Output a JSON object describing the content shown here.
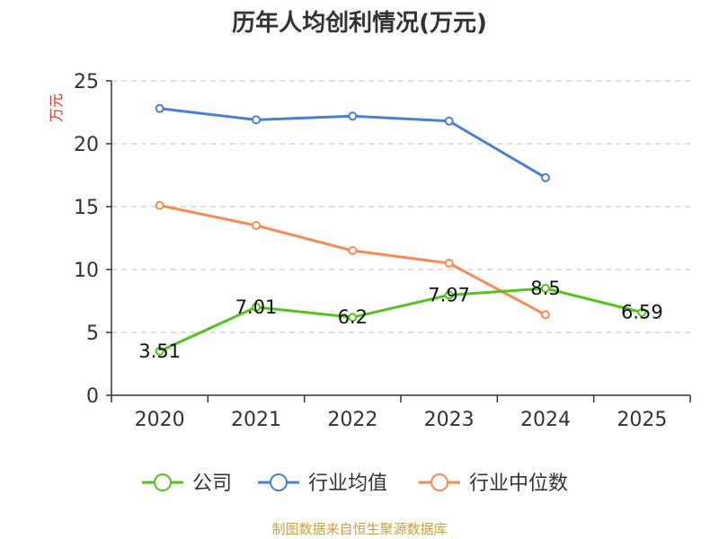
{
  "chart_data": {
    "type": "line",
    "title": "历年人均创利情况(万元)",
    "ylabel": "万元",
    "xlabel": "",
    "categories": [
      "2020",
      "2021",
      "2022",
      "2023",
      "2024",
      "2025"
    ],
    "ylim": [
      0,
      25
    ],
    "yticks": [
      0,
      5,
      10,
      15,
      20,
      25
    ],
    "grid": true,
    "legend_position": "bottom",
    "series": [
      {
        "name": "公司",
        "color": "#52c41a",
        "values": [
          3.51,
          7.01,
          6.2,
          7.97,
          8.5,
          6.59
        ],
        "labels": [
          "3.51",
          "7.01",
          "6.2",
          "7.97",
          "8.5",
          "6.59"
        ]
      },
      {
        "name": "行业均值",
        "color": "#4a7fd8",
        "values": [
          22.8,
          21.9,
          22.2,
          21.8,
          17.3,
          null
        ]
      },
      {
        "name": "行业中位数",
        "color": "#f98a55",
        "values": [
          15.1,
          13.5,
          11.5,
          10.5,
          6.4,
          null
        ]
      }
    ]
  },
  "source": "制图数据来自恒生聚源数据库",
  "colors": {
    "axis": "#333333",
    "grid": "#cccccc",
    "ylabel": "#e03030",
    "source": "#c8a040"
  }
}
